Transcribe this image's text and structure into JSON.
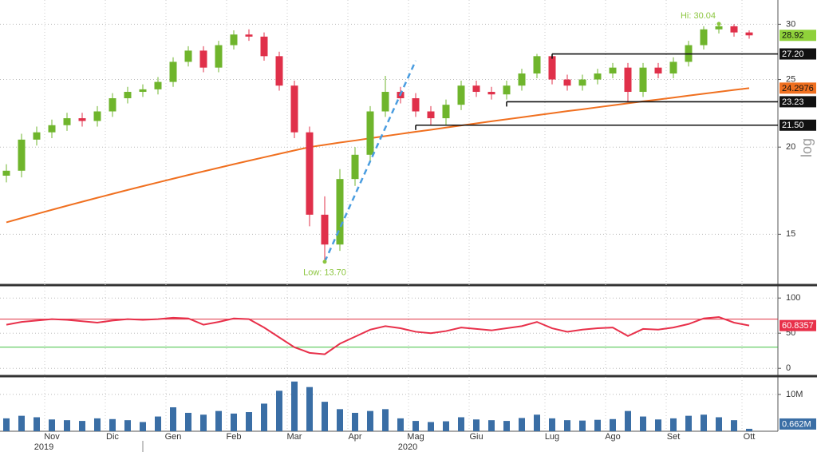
{
  "chart_data": [
    {
      "type": "candlestick",
      "open": [
        18.2,
        18.5,
        20.5,
        21.0,
        21.5,
        22.0,
        21.8,
        22.5,
        23.5,
        24.0,
        24.2,
        24.8,
        26.5,
        27.5,
        26.0,
        28.0,
        29.0,
        28.8,
        27.0,
        24.5,
        21.0,
        16.0,
        14.5,
        18.0,
        19.5,
        22.5,
        24.0,
        23.5,
        22.5,
        22.0,
        23.0,
        24.5,
        24.0,
        23.8,
        24.5,
        25.5,
        27.0,
        25.0,
        24.5,
        25.0,
        25.5,
        26.0,
        24.0,
        26.0,
        25.5,
        26.5,
        28.0,
        29.5,
        29.8,
        29.2
      ],
      "high": [
        18.9,
        20.9,
        21.4,
        21.9,
        22.4,
        22.4,
        22.9,
        23.9,
        24.4,
        24.6,
        25.2,
        26.9,
        27.9,
        27.9,
        28.4,
        29.4,
        29.5,
        29.2,
        27.4,
        24.9,
        21.4,
        17.0,
        18.6,
        20.0,
        22.9,
        25.3,
        24.4,
        23.9,
        22.9,
        23.4,
        24.9,
        24.9,
        24.4,
        24.9,
        25.9,
        27.2,
        27.2,
        25.4,
        25.4,
        25.9,
        26.4,
        26.4,
        26.4,
        26.4,
        26.9,
        28.4,
        29.8,
        30.04,
        30.0,
        29.4
      ],
      "low": [
        17.8,
        18.1,
        20.1,
        20.6,
        21.1,
        21.4,
        21.4,
        22.1,
        23.1,
        23.6,
        23.8,
        24.4,
        26.1,
        25.6,
        25.6,
        27.6,
        28.4,
        26.6,
        24.1,
        20.6,
        15.4,
        13.7,
        14.2,
        17.6,
        19.1,
        22.1,
        23.1,
        22.1,
        21.5,
        21.5,
        22.6,
        23.6,
        23.4,
        23.4,
        24.1,
        25.1,
        24.6,
        24.1,
        24.1,
        24.6,
        25.1,
        23.23,
        23.6,
        25.1,
        25.1,
        26.1,
        27.6,
        29.1,
        28.8,
        28.6
      ],
      "close": [
        18.5,
        20.5,
        21.0,
        21.5,
        22.0,
        21.8,
        22.5,
        23.5,
        24.0,
        24.2,
        24.8,
        26.5,
        27.5,
        26.0,
        28.0,
        29.0,
        28.8,
        27.0,
        24.5,
        21.0,
        16.0,
        14.5,
        18.0,
        19.5,
        22.5,
        24.0,
        23.5,
        22.5,
        22.0,
        23.0,
        24.5,
        24.0,
        23.8,
        24.5,
        25.5,
        27.0,
        25.0,
        24.5,
        25.0,
        25.5,
        26.0,
        24.0,
        26.0,
        25.5,
        26.5,
        28.0,
        29.5,
        29.8,
        29.2,
        28.92
      ],
      "up_color": "#6fb52c",
      "down_color": "#e0304a",
      "last_color": "#8fd13a",
      "ma": {
        "color": "#f07020",
        "values": [
          15.6,
          15.82,
          16.04,
          16.26,
          16.48,
          16.7,
          16.92,
          17.14,
          17.36,
          17.58,
          17.8,
          18.02,
          18.24,
          18.46,
          18.68,
          18.9,
          19.12,
          19.34,
          19.56,
          19.78,
          20.0,
          20.15,
          20.3,
          20.44,
          20.59,
          20.74,
          20.89,
          21.04,
          21.18,
          21.33,
          21.48,
          21.63,
          21.78,
          21.92,
          22.07,
          22.22,
          22.37,
          22.52,
          22.66,
          22.81,
          22.96,
          23.11,
          23.26,
          23.4,
          23.55,
          23.7,
          23.85,
          24.0,
          24.15,
          24.2976
        ]
      },
      "levels": [
        {
          "value": 27.2,
          "label": "27.20",
          "start": 36
        },
        {
          "value": 23.23,
          "label": "23.23",
          "start": 33
        },
        {
          "value": 21.5,
          "label": "21.50",
          "start": 27
        }
      ],
      "trendline": {
        "start": 21,
        "end": 27,
        "values": [
          13.7,
          26.6
        ],
        "color": "#4a9de0"
      },
      "high_label": "Hi: 30.04",
      "low_label": "Low: 13.70",
      "annotation_color": "#8cc63f",
      "side_label": "log",
      "log": true,
      "ylim": [
        12.75,
        32.5
      ],
      "yticks": [
        15,
        20,
        25,
        30
      ],
      "grid": true
    },
    {
      "type": "line",
      "color": "#e8304a",
      "values": [
        62,
        66,
        68,
        70,
        69,
        67,
        65,
        68,
        70,
        69,
        70,
        72,
        71,
        62,
        66,
        71,
        70,
        58,
        44,
        30,
        22,
        20,
        35,
        45,
        55,
        60,
        57,
        52,
        50,
        53,
        58,
        56,
        54,
        57,
        60,
        66,
        57,
        52,
        55,
        57,
        58,
        46,
        56,
        55,
        58,
        63,
        71,
        73,
        65,
        60.8357
      ],
      "bands": [
        {
          "value": 70,
          "color": "#e03040"
        },
        {
          "value": 30,
          "color": "#40c040"
        }
      ],
      "ylim": [
        -10,
        115
      ],
      "yticks": [
        0,
        50,
        100
      ],
      "grid": true
    },
    {
      "type": "bar",
      "color": "#3a6ea5",
      "last_color": "#3a6ea5",
      "values": [
        3500000,
        4200000,
        3800000,
        3200000,
        3000000,
        2800000,
        3500000,
        3300000,
        3000000,
        2500000,
        4000000,
        6500000,
        5000000,
        4500000,
        5500000,
        4800000,
        5200000,
        7500000,
        11000000,
        13500000,
        12000000,
        8000000,
        6000000,
        5000000,
        5500000,
        6000000,
        3500000,
        2800000,
        2500000,
        2700000,
        3800000,
        3200000,
        3000000,
        2800000,
        3600000,
        4500000,
        3500000,
        3000000,
        2900000,
        3100000,
        3300000,
        5500000,
        4000000,
        3200000,
        3500000,
        4200000,
        4500000,
        3800000,
        3000000,
        662000
      ],
      "value_labels": [
        null,
        null,
        null,
        null,
        null,
        null,
        null,
        null,
        null,
        null,
        null,
        null,
        null,
        null,
        null,
        null,
        null,
        null,
        null,
        null,
        null,
        null,
        null,
        null,
        null,
        null,
        null,
        null,
        null,
        null,
        null,
        null,
        null,
        null,
        null,
        null,
        null,
        null,
        null,
        null,
        null,
        null,
        null,
        null,
        null,
        null,
        null,
        null,
        null,
        "0.662M"
      ],
      "categories": [
        null,
        null,
        null,
        "Nov",
        null,
        null,
        null,
        "Dic",
        null,
        null,
        null,
        "Gen",
        null,
        null,
        null,
        "Feb",
        null,
        null,
        null,
        "Mar",
        null,
        null,
        null,
        "Apr",
        null,
        null,
        null,
        "Mag",
        null,
        null,
        null,
        "Giu",
        null,
        null,
        null,
        null,
        "Lug",
        null,
        null,
        null,
        "Ago",
        null,
        null,
        null,
        "Set",
        null,
        null,
        null,
        null,
        "Ott"
      ],
      "years": [
        "2019",
        "2020"
      ],
      "ylim": [
        0,
        14100000
      ],
      "yticks": [
        {
          "value": 10000000,
          "label": "10M"
        }
      ],
      "grid": true
    }
  ]
}
